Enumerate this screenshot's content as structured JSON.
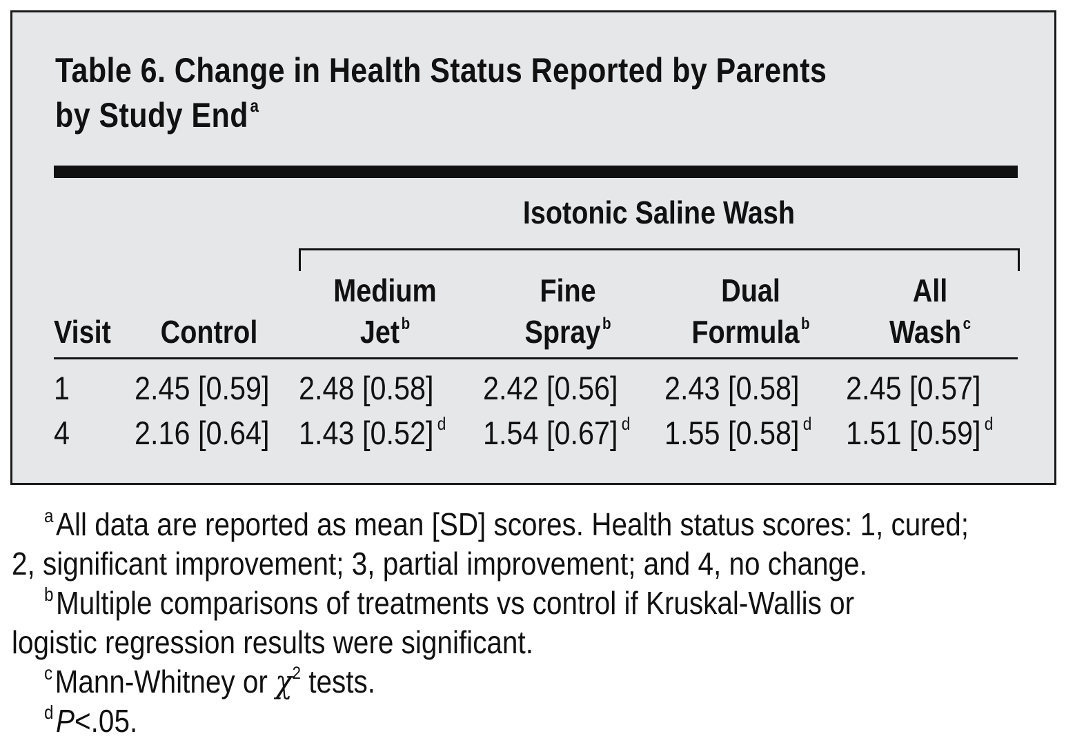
{
  "title": {
    "line1": "Table 6. Change in Health Status Reported by Parents",
    "line2": "by Study End",
    "marker": "a"
  },
  "group_header": "Isotonic Saline Wash",
  "columns": [
    {
      "line1": "",
      "line2": "Visit",
      "marker": ""
    },
    {
      "line1": "",
      "line2": "Control",
      "marker": ""
    },
    {
      "line1": "Medium",
      "line2": "Jet",
      "marker": "b"
    },
    {
      "line1": "Fine",
      "line2": "Spray",
      "marker": "b"
    },
    {
      "line1": "Dual",
      "line2": "Formula",
      "marker": "b"
    },
    {
      "line1": "All",
      "line2": "Wash",
      "marker": "c"
    }
  ],
  "rows": [
    {
      "visit": "1",
      "cells": [
        {
          "value": "2.45 [0.59]",
          "marker": ""
        },
        {
          "value": "2.48 [0.58]",
          "marker": ""
        },
        {
          "value": "2.42 [0.56]",
          "marker": ""
        },
        {
          "value": "2.43 [0.58]",
          "marker": ""
        },
        {
          "value": "2.45 [0.57]",
          "marker": ""
        }
      ]
    },
    {
      "visit": "4",
      "cells": [
        {
          "value": "2.16 [0.64]",
          "marker": ""
        },
        {
          "value": "1.43 [0.52]",
          "marker": "d"
        },
        {
          "value": "1.54 [0.67]",
          "marker": "d"
        },
        {
          "value": "1.55 [0.58]",
          "marker": "d"
        },
        {
          "value": "1.51 [0.59]",
          "marker": "d"
        }
      ]
    }
  ],
  "footnotes": {
    "a": {
      "marker": "a",
      "line1": "All data are reported as mean [SD] scores. Health status scores: 1, cured;",
      "line2": "2, significant improvement; 3, partial improvement; and 4, no change."
    },
    "b": {
      "marker": "b",
      "line1": "Multiple comparisons of treatments vs control if Kruskal-Wallis or",
      "line2": "logistic regression results were significant."
    },
    "c": {
      "marker": "c",
      "text_before": "Mann-Whitney or ",
      "symbol": "χ",
      "superscript": "2",
      "text_after": " tests."
    },
    "d": {
      "marker": "d",
      "italic": "P",
      "text": "<.05."
    }
  }
}
